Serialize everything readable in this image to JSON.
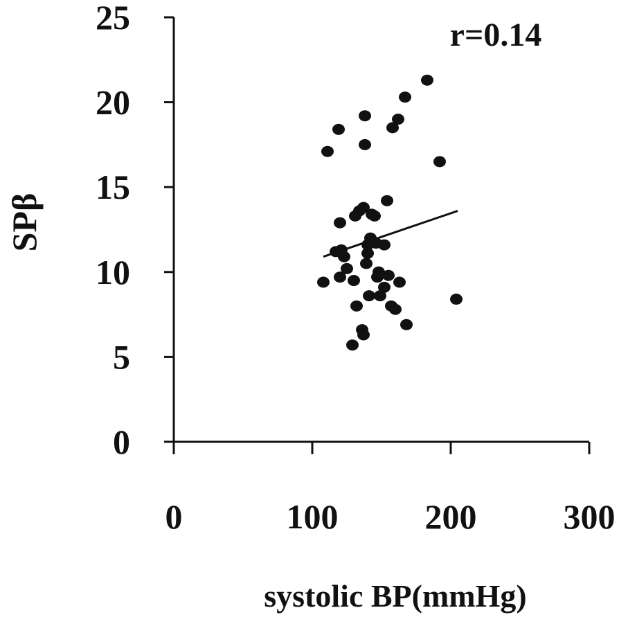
{
  "chart_data": {
    "type": "scatter",
    "title": "",
    "xlabel": "systolic BP(mmHg)",
    "ylabel": "SPβ",
    "annotation": "r=0.14",
    "xlim": [
      0,
      300
    ],
    "ylim": [
      0,
      25
    ],
    "x_ticks": [
      0,
      100,
      200,
      300
    ],
    "y_ticks": [
      0,
      5,
      10,
      15,
      20,
      25
    ],
    "grid": false,
    "legend": "none",
    "point_color": "#111111",
    "series": [
      {
        "points": [
          [
            108,
            9.4
          ],
          [
            111,
            17.1
          ],
          [
            117,
            11.2
          ],
          [
            119,
            18.4
          ],
          [
            120,
            9.7
          ],
          [
            120,
            12.9
          ],
          [
            121,
            11.3
          ],
          [
            123,
            10.9
          ],
          [
            125,
            10.2
          ],
          [
            129,
            5.7
          ],
          [
            130,
            9.5
          ],
          [
            131,
            13.3
          ],
          [
            132,
            8.0
          ],
          [
            134,
            13.6
          ],
          [
            136,
            6.6
          ],
          [
            137,
            13.8
          ],
          [
            137,
            6.3
          ],
          [
            138,
            17.5
          ],
          [
            138,
            19.2
          ],
          [
            139,
            10.5
          ],
          [
            140,
            11.1
          ],
          [
            140,
            11.6
          ],
          [
            141,
            8.6
          ],
          [
            142,
            12.0
          ],
          [
            143,
            13.4
          ],
          [
            145,
            13.3
          ],
          [
            146,
            11.7
          ],
          [
            147,
            9.7
          ],
          [
            148,
            10.0
          ],
          [
            149,
            8.6
          ],
          [
            152,
            11.6
          ],
          [
            152,
            9.1
          ],
          [
            154,
            14.2
          ],
          [
            155,
            9.8
          ],
          [
            157,
            8.0
          ],
          [
            158,
            18.5
          ],
          [
            160,
            7.8
          ],
          [
            162,
            19.0
          ],
          [
            163,
            9.4
          ],
          [
            167,
            20.3
          ],
          [
            168,
            6.9
          ],
          [
            183,
            21.3
          ],
          [
            192,
            16.5
          ],
          [
            204,
            8.4
          ]
        ]
      }
    ],
    "trendline": {
      "x": [
        108,
        205
      ],
      "y": [
        10.9,
        13.6
      ]
    }
  }
}
